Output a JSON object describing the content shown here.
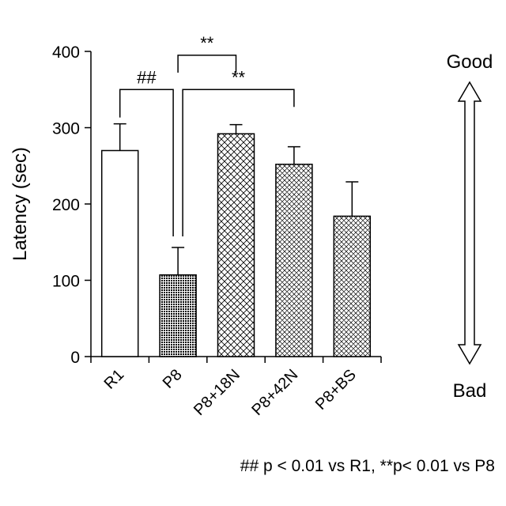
{
  "chart_data": {
    "type": "bar",
    "ylabel": "Latency (sec)",
    "xlabel": "",
    "ylim": [
      0,
      400
    ],
    "yticks": [
      0,
      100,
      200,
      300,
      400
    ],
    "categories": [
      "R1",
      "P8",
      "P8+18N",
      "P8+42N",
      "P8+BS"
    ],
    "values": [
      270,
      107,
      292,
      252,
      184
    ],
    "errors": [
      35,
      36,
      12,
      23,
      45
    ],
    "fills": [
      "white",
      "dense-dots",
      "cross-hatch",
      "fine-cross-hatch",
      "fine-cross-hatch"
    ],
    "significance": [
      {
        "from": "R1",
        "to": "P8",
        "label": "##",
        "level": 350
      },
      {
        "from": "P8",
        "to": "P8+18N",
        "label": "**",
        "level": 395
      },
      {
        "from": "P8",
        "to": "P8+42N",
        "label": "**",
        "level": 350
      }
    ],
    "scale": {
      "top_label": "Good",
      "bottom_label": "Bad"
    },
    "footnote": "## p < 0.01 vs R1, **p< 0.01 vs P8"
  }
}
